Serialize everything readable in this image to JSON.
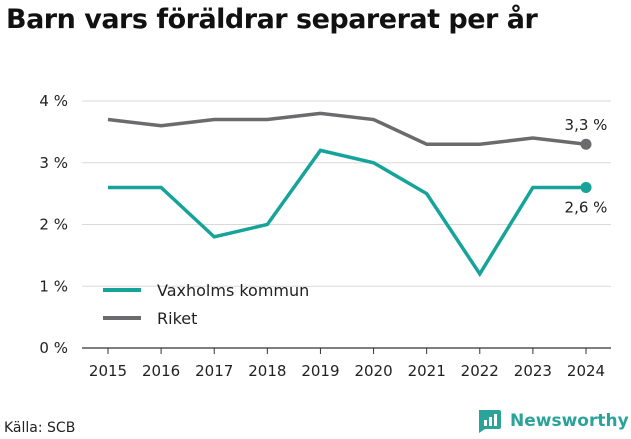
{
  "title": "Barn vars föräldrar separerat per år",
  "source": "Källa: SCB",
  "brand": "Newsworthy",
  "colors": {
    "series_teal": "#16a39a",
    "series_gray": "#6b6b6e",
    "grid": "#d9d9d9",
    "axis": "#333333",
    "brand": "#2aa39a"
  },
  "chart_data": {
    "type": "line",
    "x": [
      2015,
      2016,
      2017,
      2018,
      2019,
      2020,
      2021,
      2022,
      2023,
      2024
    ],
    "ylim": [
      0,
      4
    ],
    "yticks": [
      0,
      1,
      2,
      3,
      4
    ],
    "ytick_labels": [
      "0 %",
      "1 %",
      "2 %",
      "3 %",
      "4 %"
    ],
    "grid": true,
    "legend_position": "bottom-left",
    "series": [
      {
        "name": "Vaxholms kommun",
        "color": "#16a39a",
        "values": [
          2.6,
          2.6,
          1.8,
          2.0,
          3.2,
          3.0,
          2.5,
          1.2,
          2.6,
          2.6
        ],
        "end_label": "2,6 %"
      },
      {
        "name": "Riket",
        "color": "#6b6b6e",
        "values": [
          3.7,
          3.6,
          3.7,
          3.7,
          3.8,
          3.7,
          3.3,
          3.3,
          3.4,
          3.3
        ],
        "end_label": "3,3 %"
      }
    ]
  }
}
